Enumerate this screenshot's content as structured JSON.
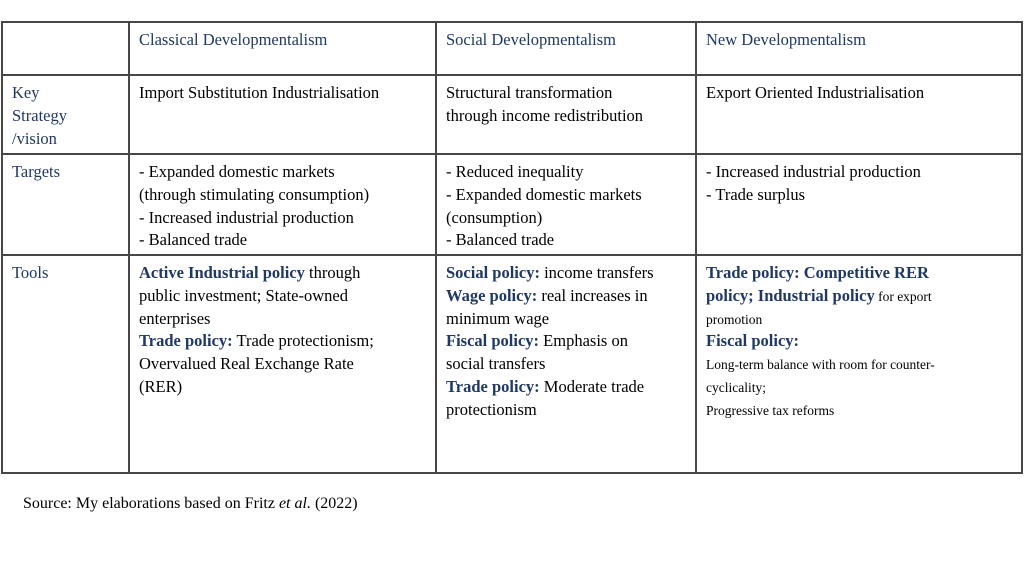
{
  "colors": {
    "heading_navy": "#1f3864",
    "body_text": "#000000",
    "table_border": "#474747",
    "background": "#ffffff"
  },
  "table": {
    "headers": [
      "Classical Developmentalism",
      "Social Developmentalism",
      "New Developmentalism"
    ],
    "rows": [
      {
        "label": [
          {
            "t": "Key"
          },
          {
            "br": true
          },
          {
            "t": "Strategy"
          },
          {
            "br": true
          },
          {
            "t": "/vision"
          }
        ],
        "cells": [
          [
            {
              "t": "Import Substitution Industrialisation"
            }
          ],
          [
            {
              "t": "Structural transformation"
            },
            {
              "br": true
            },
            {
              "t": "through income redistribution"
            }
          ],
          [
            {
              "t": "Export Oriented Industrialisation"
            }
          ]
        ]
      },
      {
        "label": [
          {
            "t": "Targets"
          }
        ],
        "cells": [
          [
            {
              "t": "- Expanded domestic markets"
            },
            {
              "br": true
            },
            {
              "t": "(through stimulating consumption)"
            },
            {
              "br": true
            },
            {
              "t": "- Increased industrial production"
            },
            {
              "br": true
            },
            {
              "t": "- Balanced trade"
            }
          ],
          [
            {
              "t": "- Reduced inequality"
            },
            {
              "br": true
            },
            {
              "t": "- Expanded domestic markets"
            },
            {
              "br": true
            },
            {
              "t": "(consumption)"
            },
            {
              "br": true
            },
            {
              "t": "- Balanced trade"
            }
          ],
          [
            {
              "t": "- Increased industrial production"
            },
            {
              "br": true
            },
            {
              "t": "- Trade surplus"
            }
          ]
        ]
      },
      {
        "label": [
          {
            "t": "Tools"
          }
        ],
        "cells": [
          [
            {
              "t": "Active Industrial policy",
              "b": true
            },
            {
              "t": " through"
            },
            {
              "br": true
            },
            {
              "t": "public investment; State-owned"
            },
            {
              "br": true
            },
            {
              "t": "enterprises"
            },
            {
              "br": true
            },
            {
              "t": "Trade policy:",
              "b": true
            },
            {
              "t": " Trade protectionism;"
            },
            {
              "br": true
            },
            {
              "t": "Overvalued Real Exchange Rate"
            },
            {
              "br": true
            },
            {
              "t": "(RER)"
            }
          ],
          [
            {
              "t": "Social policy:",
              "b": true
            },
            {
              "t": " income transfers"
            },
            {
              "br": true
            },
            {
              "t": "Wage policy:",
              "b": true
            },
            {
              "t": " real increases in"
            },
            {
              "br": true
            },
            {
              "t": "minimum wage"
            },
            {
              "br": true
            },
            {
              "t": "Fiscal policy:",
              "b": true
            },
            {
              "t": " Emphasis on"
            },
            {
              "br": true
            },
            {
              "t": "social transfers"
            },
            {
              "br": true
            },
            {
              "t": "Trade policy:",
              "b": true
            },
            {
              "t": " Moderate trade"
            },
            {
              "br": true
            },
            {
              "t": "protectionism"
            }
          ],
          [
            {
              "t": "Trade policy: Competitive RER",
              "b": true
            },
            {
              "br": true
            },
            {
              "t": "policy; Industrial policy",
              "b": true
            },
            {
              "t": " for export",
              "sm": true
            },
            {
              "br": true
            },
            {
              "t": "promotion",
              "sm": true
            },
            {
              "br": true
            },
            {
              "t": "Fiscal policy:",
              "b": true
            },
            {
              "br": true
            },
            {
              "t": "Long-term balance with room for counter-",
              "sm": true
            },
            {
              "br": true
            },
            {
              "t": "cyclicality;",
              "sm": true
            },
            {
              "br": true
            },
            {
              "t": "Progressive tax reforms",
              "sm": true
            }
          ]
        ]
      }
    ]
  },
  "source": [
    {
      "t": "Source: My elaborations based on Fritz "
    },
    {
      "t": "et al.",
      "i": true
    },
    {
      "t": " (2022)"
    }
  ]
}
